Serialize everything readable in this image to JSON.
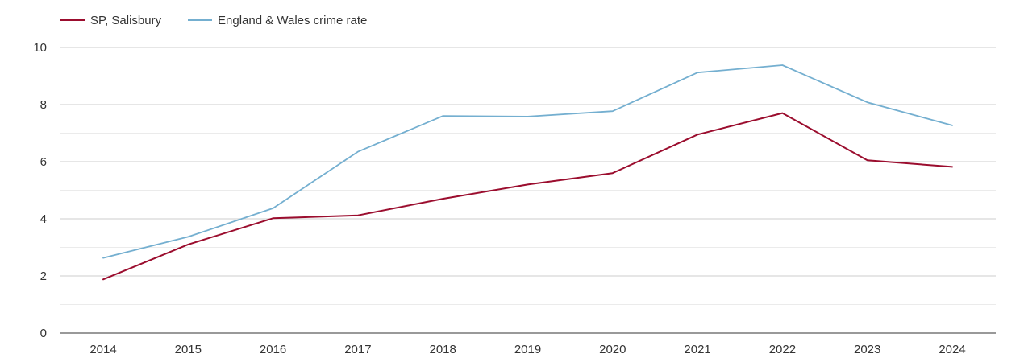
{
  "chart_data": {
    "type": "line",
    "categories": [
      "2014",
      "2015",
      "2016",
      "2017",
      "2018",
      "2019",
      "2020",
      "2021",
      "2022",
      "2023",
      "2024"
    ],
    "ylim": [
      0,
      10
    ],
    "yticks": [
      "0",
      "2",
      "4",
      "6",
      "8",
      "10"
    ],
    "grid": true,
    "legend_position": "top-left",
    "series": [
      {
        "name": "SP, Salisbury",
        "color": "#9b0d2e",
        "values": [
          1.88,
          3.1,
          4.02,
          4.12,
          4.7,
          5.2,
          5.6,
          6.95,
          7.7,
          6.05,
          5.82
        ]
      },
      {
        "name": "England & Wales crime rate",
        "color": "#74afd0",
        "values": [
          2.63,
          3.37,
          4.37,
          6.35,
          7.6,
          7.58,
          7.77,
          9.12,
          9.38,
          8.08,
          7.27
        ]
      }
    ]
  }
}
